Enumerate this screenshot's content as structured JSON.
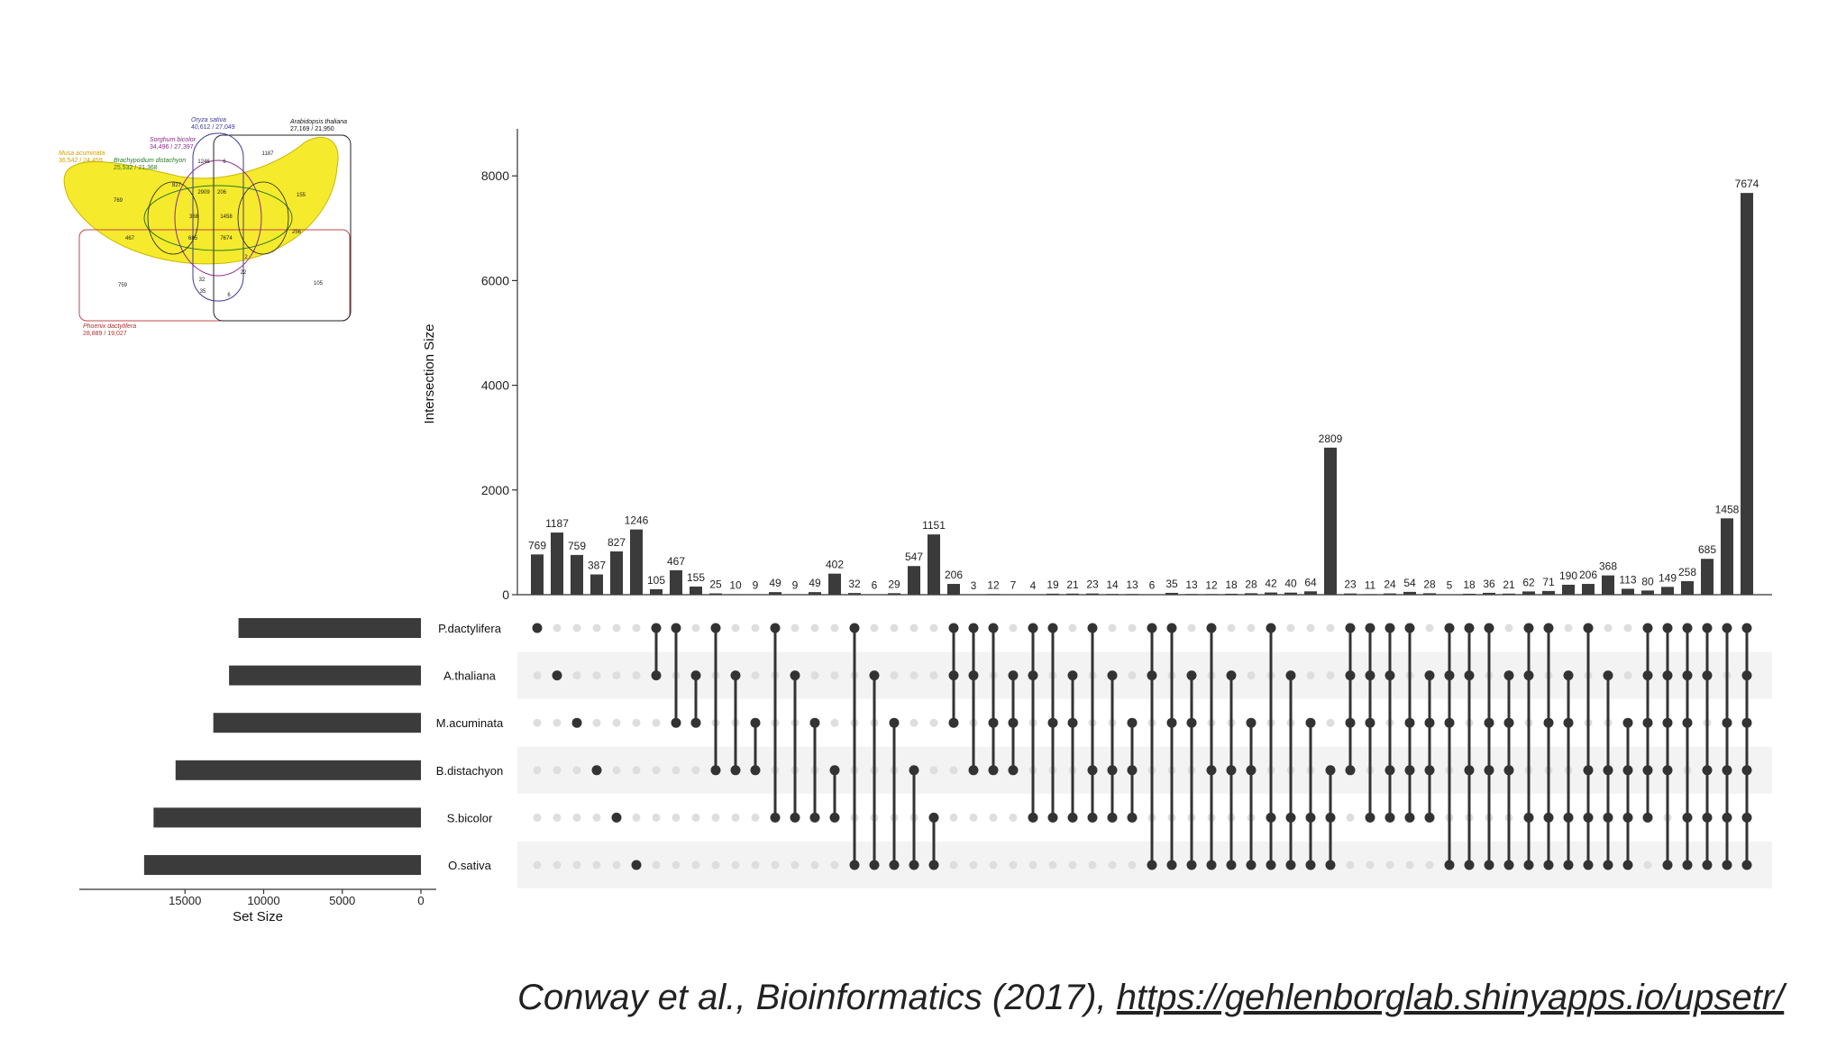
{
  "venn": {
    "sets": [
      {
        "name": "Oryza sativa",
        "counts": "40,612 / 27,049",
        "color": "#3a3a9a"
      },
      {
        "name": "Arabidopsis thaliana",
        "counts": "27,169 / 21,950",
        "color": "#111111"
      },
      {
        "name": "Sorghum bicolor",
        "counts": "34,496 / 27,397",
        "color": "#8a2b8a"
      },
      {
        "name": "Musa acuminata",
        "counts": "36,542 / 24,459",
        "color": "#d4a000"
      },
      {
        "name": "Brachypodium distachyon",
        "counts": "25,532 / 21,368",
        "color": "#2a7a2a"
      },
      {
        "name": "Phoenix dactylifera",
        "counts": "28,889 / 19,027",
        "color": "#b03030"
      }
    ],
    "region_labels": [
      {
        "t": "1246",
        "x": 226,
        "y": 181
      },
      {
        "t": "6",
        "x": 249,
        "y": 181
      },
      {
        "t": "1187",
        "x": 297,
        "y": 172
      },
      {
        "t": "827",
        "x": 196,
        "y": 207
      },
      {
        "t": "2909",
        "x": 226,
        "y": 215
      },
      {
        "t": "206",
        "x": 246,
        "y": 215
      },
      {
        "t": "769",
        "x": 131,
        "y": 224
      },
      {
        "t": "155",
        "x": 334,
        "y": 218
      },
      {
        "t": "368",
        "x": 215,
        "y": 242
      },
      {
        "t": "1458",
        "x": 251,
        "y": 242
      },
      {
        "t": "467",
        "x": 144,
        "y": 266
      },
      {
        "t": "685",
        "x": 214,
        "y": 266
      },
      {
        "t": "7674",
        "x": 251,
        "y": 266
      },
      {
        "t": "256",
        "x": 329,
        "y": 259
      },
      {
        "t": "759",
        "x": 136,
        "y": 318
      },
      {
        "t": "105",
        "x": 353,
        "y": 316
      },
      {
        "t": "2",
        "x": 273,
        "y": 287
      },
      {
        "t": "32",
        "x": 224,
        "y": 312
      },
      {
        "t": "6",
        "x": 254,
        "y": 329
      },
      {
        "t": "35",
        "x": 225,
        "y": 325
      },
      {
        "t": "22",
        "x": 270,
        "y": 304
      }
    ]
  },
  "chart_data": {
    "type": "upset",
    "ylabel": "Intersection Size",
    "set_size_label": "Set Size",
    "yticks": [
      0,
      2000,
      4000,
      6000,
      8000
    ],
    "ylim": [
      0,
      8800
    ],
    "set_size_ticks": [
      15000,
      10000,
      5000,
      0
    ],
    "sets": [
      {
        "name": "P.dactylifera",
        "size": 11600
      },
      {
        "name": "A.thaliana",
        "size": 12200
      },
      {
        "name": "M.acuminata",
        "size": 13200
      },
      {
        "name": "B.distachyon",
        "size": 15600
      },
      {
        "name": "S.bicolor",
        "size": 17000
      },
      {
        "name": "O.sativa",
        "size": 17600
      }
    ],
    "intersections": [
      {
        "value": 769,
        "sets": [
          0
        ]
      },
      {
        "value": 1187,
        "sets": [
          1
        ]
      },
      {
        "value": 759,
        "sets": [
          2
        ]
      },
      {
        "value": 387,
        "sets": [
          3
        ]
      },
      {
        "value": 827,
        "sets": [
          4
        ]
      },
      {
        "value": 1246,
        "sets": [
          5
        ]
      },
      {
        "value": 105,
        "sets": [
          0,
          1
        ]
      },
      {
        "value": 467,
        "sets": [
          0,
          2
        ]
      },
      {
        "value": 155,
        "sets": [
          1,
          2
        ]
      },
      {
        "value": 25,
        "sets": [
          0,
          3
        ]
      },
      {
        "value": 10,
        "sets": [
          1,
          3
        ]
      },
      {
        "value": 9,
        "sets": [
          2,
          3
        ]
      },
      {
        "value": 49,
        "sets": [
          0,
          4
        ]
      },
      {
        "value": 9,
        "sets": [
          1,
          4
        ]
      },
      {
        "value": 49,
        "sets": [
          2,
          4
        ]
      },
      {
        "value": 402,
        "sets": [
          3,
          4
        ]
      },
      {
        "value": 32,
        "sets": [
          0,
          5
        ]
      },
      {
        "value": 6,
        "sets": [
          1,
          5
        ]
      },
      {
        "value": 29,
        "sets": [
          2,
          5
        ]
      },
      {
        "value": 547,
        "sets": [
          3,
          5
        ]
      },
      {
        "value": 1151,
        "sets": [
          4,
          5
        ]
      },
      {
        "value": 206,
        "sets": [
          0,
          1,
          2
        ]
      },
      {
        "value": 3,
        "sets": [
          0,
          1,
          3
        ]
      },
      {
        "value": 12,
        "sets": [
          0,
          2,
          3
        ]
      },
      {
        "value": 7,
        "sets": [
          1,
          2,
          3
        ]
      },
      {
        "value": 4,
        "sets": [
          0,
          1,
          4
        ]
      },
      {
        "value": 19,
        "sets": [
          0,
          2,
          4
        ]
      },
      {
        "value": 21,
        "sets": [
          1,
          2,
          4
        ]
      },
      {
        "value": 23,
        "sets": [
          0,
          3,
          4
        ]
      },
      {
        "value": 14,
        "sets": [
          1,
          3,
          4
        ]
      },
      {
        "value": 13,
        "sets": [
          2,
          3,
          4
        ]
      },
      {
        "value": 6,
        "sets": [
          0,
          1,
          5
        ]
      },
      {
        "value": 35,
        "sets": [
          0,
          2,
          5
        ]
      },
      {
        "value": 13,
        "sets": [
          1,
          2,
          5
        ]
      },
      {
        "value": 12,
        "sets": [
          0,
          3,
          5
        ]
      },
      {
        "value": 18,
        "sets": [
          1,
          3,
          5
        ]
      },
      {
        "value": 28,
        "sets": [
          2,
          3,
          5
        ]
      },
      {
        "value": 42,
        "sets": [
          0,
          4,
          5
        ]
      },
      {
        "value": 40,
        "sets": [
          1,
          4,
          5
        ]
      },
      {
        "value": 64,
        "sets": [
          2,
          4,
          5
        ]
      },
      {
        "value": 2809,
        "sets": [
          3,
          4,
          5
        ]
      },
      {
        "value": 23,
        "sets": [
          0,
          1,
          2,
          3
        ]
      },
      {
        "value": 11,
        "sets": [
          0,
          1,
          2,
          4
        ]
      },
      {
        "value": 24,
        "sets": [
          0,
          1,
          3,
          4
        ]
      },
      {
        "value": 54,
        "sets": [
          0,
          2,
          3,
          4
        ]
      },
      {
        "value": 28,
        "sets": [
          1,
          2,
          3,
          4
        ]
      },
      {
        "value": 5,
        "sets": [
          0,
          1,
          2,
          5
        ]
      },
      {
        "value": 18,
        "sets": [
          0,
          1,
          3,
          5
        ]
      },
      {
        "value": 36,
        "sets": [
          0,
          2,
          3,
          5
        ]
      },
      {
        "value": 21,
        "sets": [
          1,
          2,
          3,
          5
        ]
      },
      {
        "value": 62,
        "sets": [
          0,
          1,
          4,
          5
        ]
      },
      {
        "value": 71,
        "sets": [
          0,
          2,
          4,
          5
        ]
      },
      {
        "value": 190,
        "sets": [
          1,
          2,
          4,
          5
        ]
      },
      {
        "value": 206,
        "sets": [
          0,
          3,
          4,
          5
        ]
      },
      {
        "value": 368,
        "sets": [
          1,
          3,
          4,
          5
        ]
      },
      {
        "value": 113,
        "sets": [
          2,
          3,
          4,
          5
        ]
      },
      {
        "value": 80,
        "sets": [
          0,
          1,
          2,
          3,
          4
        ]
      },
      {
        "value": 149,
        "sets": [
          0,
          1,
          2,
          3,
          5
        ]
      },
      {
        "value": 258,
        "sets": [
          0,
          1,
          2,
          4,
          5
        ]
      },
      {
        "value": 685,
        "sets": [
          0,
          1,
          3,
          4,
          5
        ]
      },
      {
        "value": 1458,
        "sets": [
          0,
          2,
          3,
          4,
          5
        ]
      },
      {
        "value": 7674,
        "sets": [
          0,
          1,
          2,
          3,
          4,
          5
        ]
      }
    ]
  },
  "citation": {
    "text": "Conway et al., Bioinformatics (2017), ",
    "url": "https://gehlenborglab.shinyapps.io/upsetr/"
  }
}
